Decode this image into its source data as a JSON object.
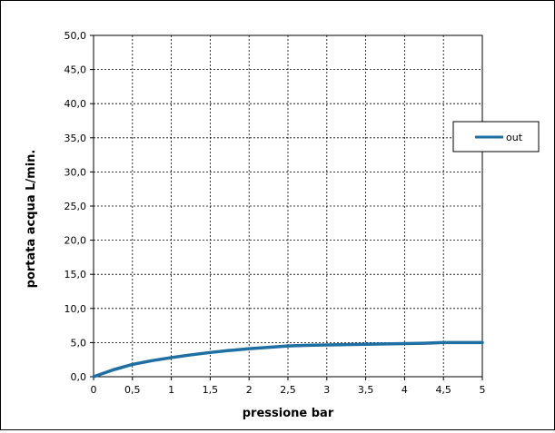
{
  "chart_data": {
    "type": "line",
    "xlabel": "pressione bar",
    "ylabel": "portata acqua L/min.",
    "xlim": [
      0,
      5
    ],
    "ylim": [
      0,
      50
    ],
    "x_ticks": [
      "0",
      "0,5",
      "1",
      "1,5",
      "2",
      "2,5",
      "3",
      "3,5",
      "4",
      "4,5",
      "5"
    ],
    "y_ticks": [
      "0,0",
      "5,0",
      "10,0",
      "15,0",
      "20,0",
      "25,0",
      "30,0",
      "35,0",
      "40,0",
      "45,0",
      "50,0"
    ],
    "grid": true,
    "legend_position": "right",
    "series": [
      {
        "name": "out",
        "color": "#1f6fa3",
        "x": [
          0,
          0.25,
          0.5,
          0.75,
          1,
          1.25,
          1.5,
          1.75,
          2,
          2.25,
          2.5,
          2.75,
          3,
          3.25,
          3.5,
          3.75,
          4,
          4.25,
          4.5,
          4.75,
          5
        ],
        "y": [
          0.0,
          1.0,
          1.8,
          2.35,
          2.8,
          3.2,
          3.55,
          3.85,
          4.1,
          4.3,
          4.5,
          4.6,
          4.65,
          4.7,
          4.75,
          4.8,
          4.85,
          4.9,
          5.0,
          5.0,
          5.0
        ]
      }
    ]
  }
}
